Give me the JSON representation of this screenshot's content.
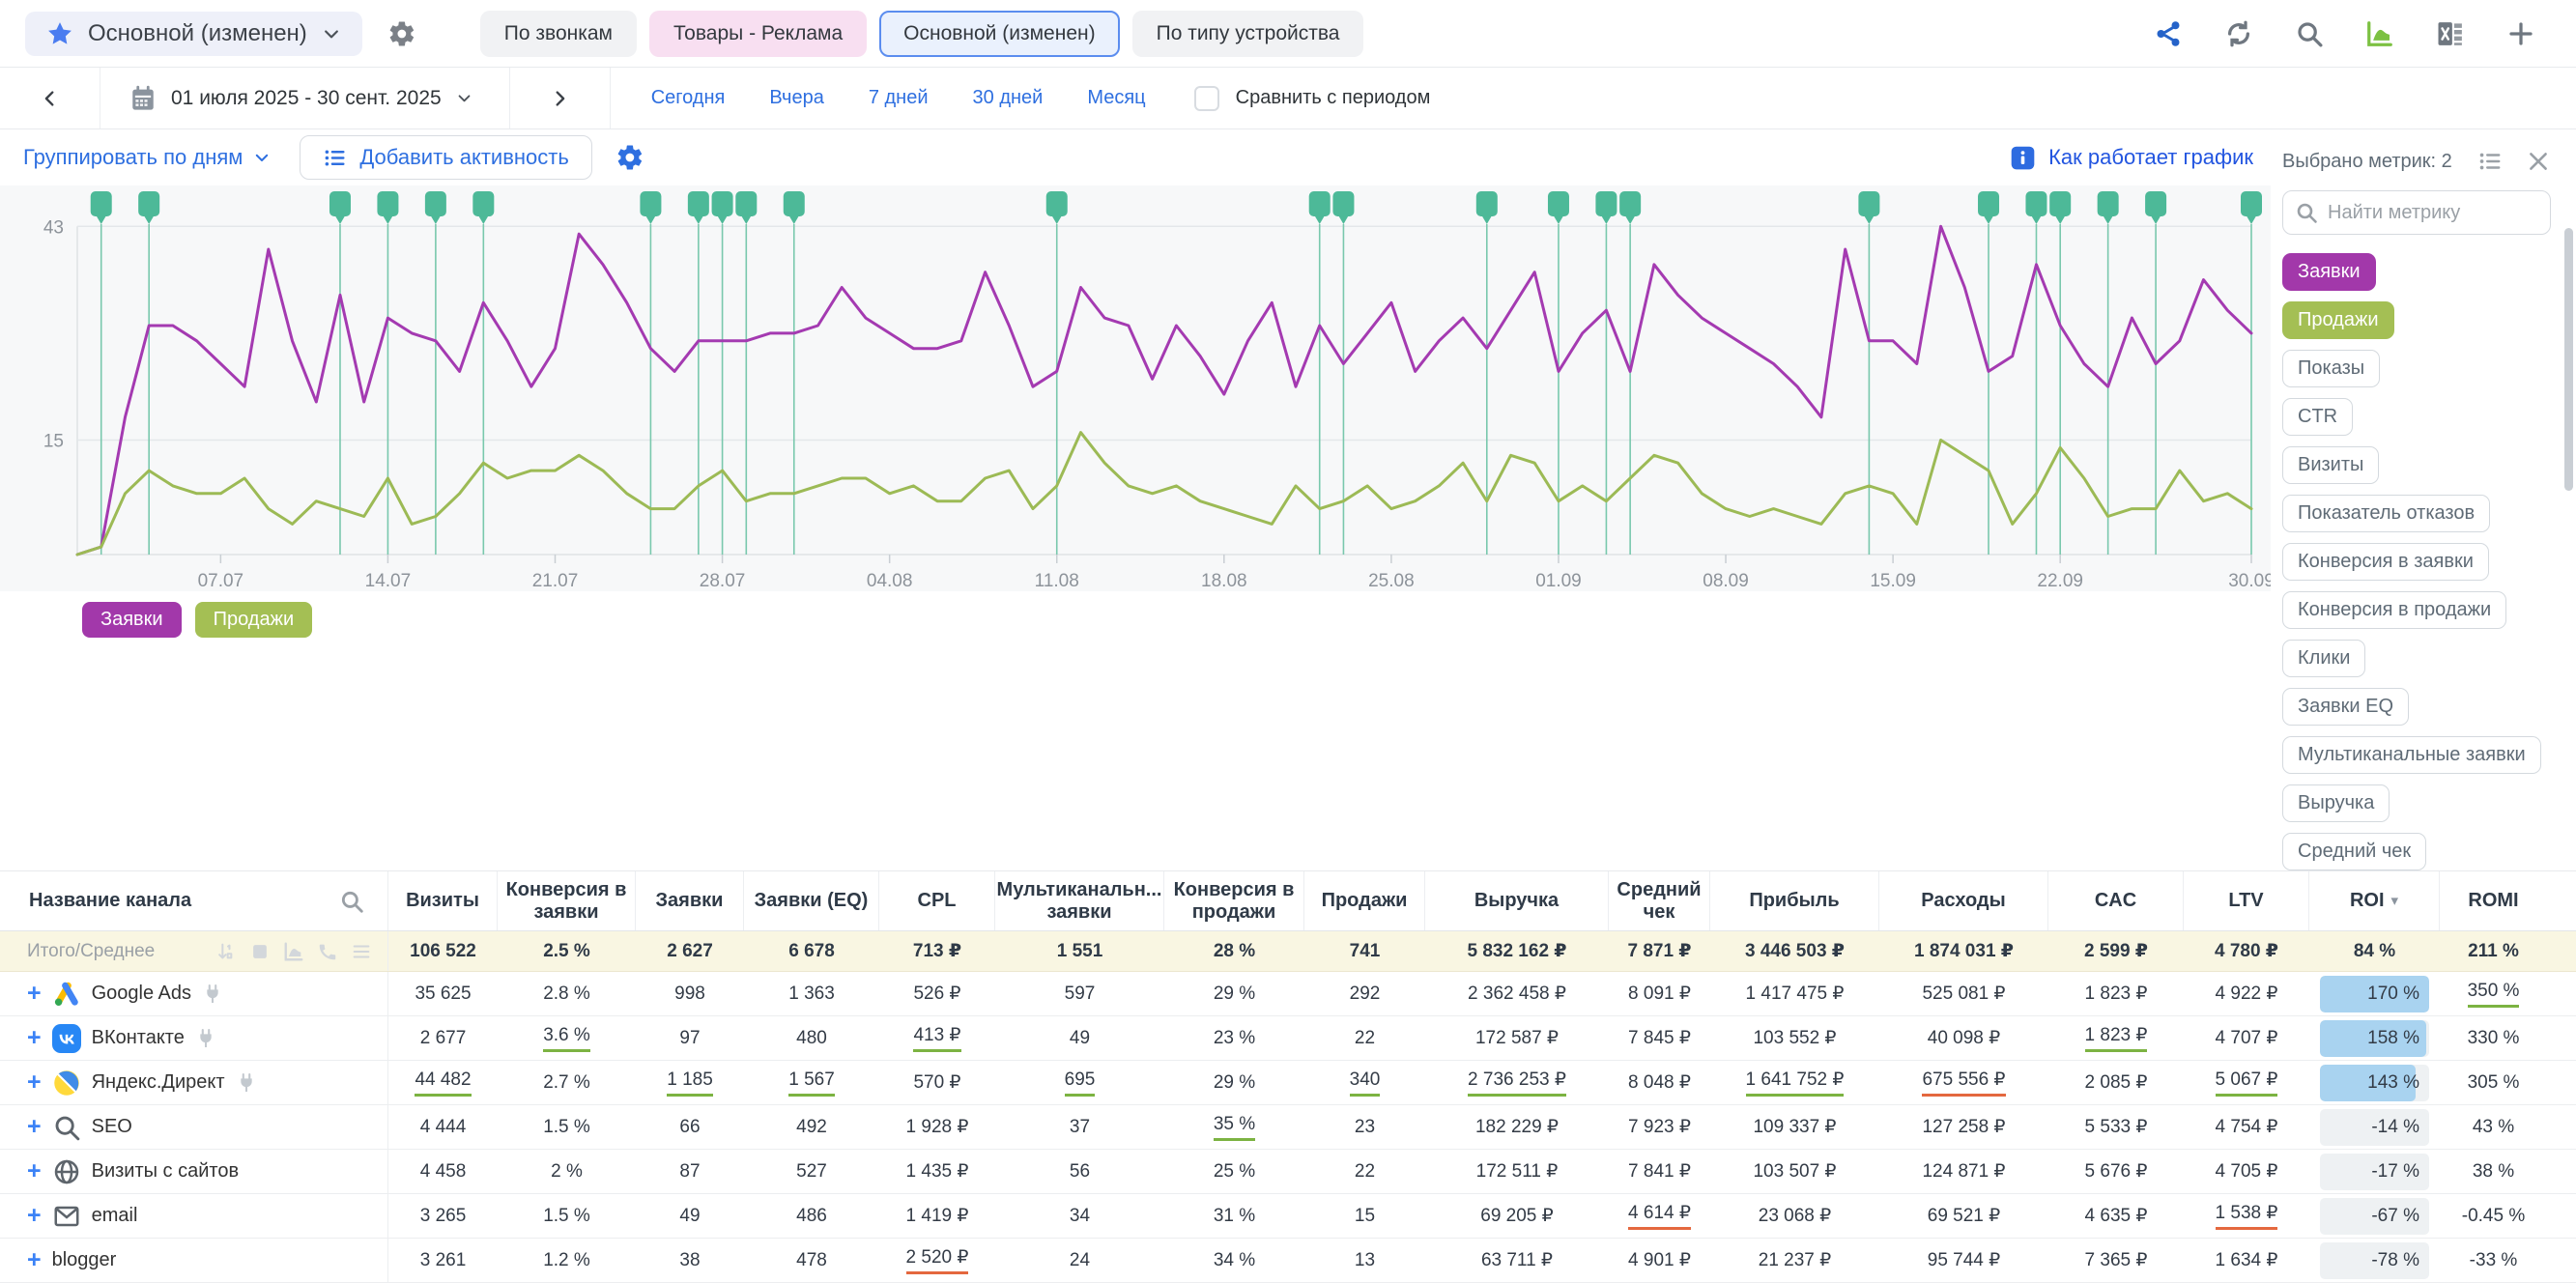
{
  "header": {
    "view_title": "Основной (изменен)",
    "tabs": [
      {
        "label": "По звонкам",
        "style": "gray"
      },
      {
        "label": "Товары - Реклама",
        "style": "pink"
      },
      {
        "label": "Основной (изменен)",
        "style": "active"
      },
      {
        "label": "По типу устройства",
        "style": "gray"
      }
    ],
    "action_icons": [
      "share",
      "refresh",
      "search",
      "area-chart",
      "excel-export",
      "add"
    ]
  },
  "datebar": {
    "range": "01 июля 2025 - 30 сент. 2025",
    "quick_links": [
      "Сегодня",
      "Вчера",
      "7 дней",
      "30 дней",
      "Месяц"
    ],
    "compare_label": "Сравнить с периодом",
    "compare_checked": false
  },
  "controls": {
    "group_by": "Группировать по дням",
    "add_activity": "Добавить активность",
    "how_chart": "Как работает график"
  },
  "metrics_panel": {
    "selected_label": "Выбрано метрик: 2",
    "search_placeholder": "Найти метрику",
    "tags": [
      {
        "label": "Заявки",
        "selected": true,
        "color": "#a238aa"
      },
      {
        "label": "Продажи",
        "selected": true,
        "color": "#a4bf54"
      },
      {
        "label": "Показы"
      },
      {
        "label": "CTR"
      },
      {
        "label": "Визиты"
      },
      {
        "label": "Показатель отказов"
      },
      {
        "label": "Конверсия в заявки"
      },
      {
        "label": "Конверсия в продажи"
      },
      {
        "label": "Клики"
      },
      {
        "label": "Заявки EQ"
      },
      {
        "label": "Мультиканальные заявки"
      },
      {
        "label": "Выручка"
      },
      {
        "label": "Средний чек"
      }
    ]
  },
  "chart_data": {
    "type": "line",
    "x_start": "01.07.2025",
    "x_end": "30.09.2025",
    "x_tick_labels": [
      "07.07",
      "14.07",
      "21.07",
      "28.07",
      "04.08",
      "11.08",
      "18.08",
      "25.08",
      "01.09",
      "08.09",
      "15.09",
      "22.09",
      "30.09"
    ],
    "x_tick_days": [
      6,
      13,
      20,
      27,
      34,
      41,
      48,
      55,
      62,
      69,
      76,
      83,
      91
    ],
    "ylim": [
      0,
      45
    ],
    "y_gridlines": [
      43,
      15
    ],
    "grid": true,
    "legend_position": "bottom-left",
    "series": [
      {
        "name": "Заявки",
        "color": "#a43ab1",
        "values": [
          0,
          1,
          18,
          30,
          30,
          28,
          25,
          22,
          40,
          28,
          20,
          34,
          20,
          31,
          29,
          28,
          24,
          33,
          28,
          22,
          27,
          42,
          38,
          33,
          27,
          24,
          28,
          28,
          28,
          29,
          29,
          30,
          35,
          31,
          29,
          27,
          27,
          28,
          37,
          30,
          22,
          24,
          35,
          31,
          30,
          23,
          30,
          26,
          21,
          28,
          33,
          22,
          30,
          25,
          29,
          33,
          24,
          28,
          31,
          27,
          32,
          37,
          24,
          29,
          32,
          24,
          38,
          34,
          31,
          29,
          27,
          25,
          22,
          18,
          40,
          28,
          28,
          25,
          43,
          35,
          24,
          26,
          38,
          30,
          25,
          22,
          31,
          25,
          28,
          36,
          32,
          29
        ]
      },
      {
        "name": "Продажи",
        "color": "#9cba55",
        "values": [
          0,
          1,
          8,
          11,
          9,
          8,
          8,
          10,
          6,
          4,
          7,
          6,
          5,
          10,
          4,
          5,
          8,
          12,
          10,
          11,
          11,
          13,
          11,
          8,
          6,
          6,
          9,
          11,
          7,
          8,
          8,
          9,
          10,
          10,
          8,
          9,
          7,
          7,
          10,
          11,
          6,
          9,
          16,
          12,
          9,
          8,
          9,
          7,
          6,
          5,
          4,
          9,
          6,
          7,
          9,
          6,
          7,
          9,
          12,
          7,
          13,
          12,
          7,
          9,
          7,
          10,
          13,
          12,
          8,
          6,
          5,
          6,
          5,
          4,
          8,
          9,
          8,
          4,
          15,
          13,
          11,
          4,
          8,
          14,
          10,
          5,
          6,
          6,
          11,
          7,
          8,
          6
        ]
      }
    ],
    "activity_flag_days": [
      1,
      3,
      11,
      13,
      15,
      17,
      24,
      26,
      27,
      28,
      30,
      41,
      52,
      53,
      59,
      62,
      64,
      65,
      75,
      80,
      82,
      83,
      85,
      87,
      91
    ],
    "flag_color": "#4db998",
    "flag_line_color": "#79c8ad"
  },
  "legend": [
    {
      "label": "Заявки",
      "color": "#a238aa"
    },
    {
      "label": "Продажи",
      "color": "#a4bf54"
    }
  ],
  "table": {
    "sort_column": "ROI",
    "columns": [
      "Название канала",
      "Визиты",
      "Конверсия в заявки",
      "Заявки",
      "Заявки (EQ)",
      "CPL",
      "Мультиканальн... заявки",
      "Конверсия в продажи",
      "Продажи",
      "Выручка",
      "Средний чек",
      "Прибыль",
      "Расходы",
      "CAC",
      "LTV",
      "ROI",
      "ROMI"
    ],
    "total": {
      "label": "Итого/Среднее",
      "icons": [
        "sort-numeric",
        "stop-square",
        "area-chart",
        "phone",
        "list-plain"
      ],
      "cells": [
        "106 522",
        "2.5 %",
        "2 627",
        "6 678",
        "713 ₽",
        "1 551",
        "28 %",
        "741",
        "5 832 162 ₽",
        "7 871 ₽",
        "3 446 503 ₽",
        "1 874 031 ₽",
        "2 599 ₽",
        "4 780 ₽",
        "84 %",
        "211 %"
      ]
    },
    "rows": [
      {
        "name": "Google Ads",
        "icon": "google",
        "plug": true,
        "cells": [
          {
            "v": "35 625"
          },
          {
            "v": "2.8 %"
          },
          {
            "v": "998"
          },
          {
            "v": "1 363"
          },
          {
            "v": "526 ₽"
          },
          {
            "v": "597"
          },
          {
            "v": "29 %"
          },
          {
            "v": "292"
          },
          {
            "v": "2 362 458 ₽"
          },
          {
            "v": "8 091 ₽"
          },
          {
            "v": "1 417 475 ₽"
          },
          {
            "v": "525 081 ₽"
          },
          {
            "v": "1 823 ₽"
          },
          {
            "v": "4 922 ₽"
          },
          {
            "v": "170 %",
            "bar": 1,
            "u": "green"
          },
          {
            "v": "350 %",
            "u": "green"
          }
        ]
      },
      {
        "name": "ВКонтакте",
        "icon": "vk",
        "plug": true,
        "cells": [
          {
            "v": "2 677"
          },
          {
            "v": "3.6 %",
            "u": "green"
          },
          {
            "v": "97"
          },
          {
            "v": "480"
          },
          {
            "v": "413 ₽",
            "u": "green"
          },
          {
            "v": "49"
          },
          {
            "v": "23 %"
          },
          {
            "v": "22"
          },
          {
            "v": "172 587 ₽"
          },
          {
            "v": "7 845 ₽"
          },
          {
            "v": "103 552 ₽"
          },
          {
            "v": "40 098 ₽"
          },
          {
            "v": "1 823 ₽",
            "u": "green"
          },
          {
            "v": "4 707 ₽"
          },
          {
            "v": "158 %",
            "bar": 0.97
          },
          {
            "v": "330 %"
          }
        ]
      },
      {
        "name": "Яндекс.Директ",
        "icon": "yandex",
        "plug": true,
        "cells": [
          {
            "v": "44 482",
            "u": "green"
          },
          {
            "v": "2.7 %"
          },
          {
            "v": "1 185",
            "u": "green"
          },
          {
            "v": "1 567",
            "u": "green"
          },
          {
            "v": "570 ₽"
          },
          {
            "v": "695",
            "u": "green"
          },
          {
            "v": "29 %"
          },
          {
            "v": "340",
            "u": "green"
          },
          {
            "v": "2 736 253 ₽",
            "u": "green"
          },
          {
            "v": "8 048 ₽"
          },
          {
            "v": "1 641 752 ₽",
            "u": "green"
          },
          {
            "v": "675 556 ₽",
            "u": "orange"
          },
          {
            "v": "2 085 ₽"
          },
          {
            "v": "5 067 ₽",
            "u": "green"
          },
          {
            "v": "143 %",
            "bar": 0.88,
            "u": "green"
          },
          {
            "v": "305 %"
          }
        ]
      },
      {
        "name": "SEO",
        "icon": "seo",
        "plug": false,
        "cells": [
          {
            "v": "4 444"
          },
          {
            "v": "1.5 %"
          },
          {
            "v": "66"
          },
          {
            "v": "492"
          },
          {
            "v": "1 928 ₽"
          },
          {
            "v": "37"
          },
          {
            "v": "35 %",
            "u": "green"
          },
          {
            "v": "23"
          },
          {
            "v": "182 229 ₽"
          },
          {
            "v": "7 923 ₽"
          },
          {
            "v": "109 337 ₽"
          },
          {
            "v": "127 258 ₽"
          },
          {
            "v": "5 533 ₽"
          },
          {
            "v": "4 754 ₽"
          },
          {
            "v": "-14 %",
            "bar": 0
          },
          {
            "v": "43 %"
          }
        ]
      },
      {
        "name": "Визиты с сайтов",
        "icon": "globe",
        "plug": false,
        "cells": [
          {
            "v": "4 458"
          },
          {
            "v": "2 %"
          },
          {
            "v": "87"
          },
          {
            "v": "527"
          },
          {
            "v": "1 435 ₽"
          },
          {
            "v": "56"
          },
          {
            "v": "25 %"
          },
          {
            "v": "22"
          },
          {
            "v": "172 511 ₽"
          },
          {
            "v": "7 841 ₽"
          },
          {
            "v": "103 507 ₽"
          },
          {
            "v": "124 871 ₽"
          },
          {
            "v": "5 676 ₽"
          },
          {
            "v": "4 705 ₽"
          },
          {
            "v": "-17 %",
            "bar": 0
          },
          {
            "v": "38 %"
          }
        ]
      },
      {
        "name": "email",
        "icon": "envelope",
        "plug": false,
        "cells": [
          {
            "v": "3 265"
          },
          {
            "v": "1.5 %"
          },
          {
            "v": "49"
          },
          {
            "v": "486"
          },
          {
            "v": "1 419 ₽"
          },
          {
            "v": "34"
          },
          {
            "v": "31 %"
          },
          {
            "v": "15"
          },
          {
            "v": "69 205 ₽"
          },
          {
            "v": "4 614 ₽",
            "u": "orange"
          },
          {
            "v": "23 068 ₽"
          },
          {
            "v": "69 521 ₽"
          },
          {
            "v": "4 635 ₽"
          },
          {
            "v": "1 538 ₽",
            "u": "orange"
          },
          {
            "v": "-67 %",
            "bar": 0
          },
          {
            "v": "-0.45 %"
          }
        ]
      },
      {
        "name": "blogger",
        "icon": null,
        "plug": false,
        "cells": [
          {
            "v": "3 261"
          },
          {
            "v": "1.2 %"
          },
          {
            "v": "38"
          },
          {
            "v": "478"
          },
          {
            "v": "2 520 ₽",
            "u": "orange"
          },
          {
            "v": "24"
          },
          {
            "v": "34 %"
          },
          {
            "v": "13"
          },
          {
            "v": "63 711 ₽"
          },
          {
            "v": "4 901 ₽"
          },
          {
            "v": "21 237 ₽"
          },
          {
            "v": "95 744 ₽"
          },
          {
            "v": "7 365 ₽"
          },
          {
            "v": "1 634 ₽"
          },
          {
            "v": "-78 %",
            "bar": 0
          },
          {
            "v": "-33 %"
          }
        ]
      }
    ]
  },
  "colors": {
    "accent_blue": "#2e6fe0",
    "purple": "#a238aa",
    "olive_green": "#a4bf54",
    "flag_teal": "#4db998",
    "roi_bar_blue": "#a9d3f0",
    "underline_green": "#7cb342",
    "underline_orange": "#e4683f",
    "total_row_bg": "#f9f6e2"
  }
}
